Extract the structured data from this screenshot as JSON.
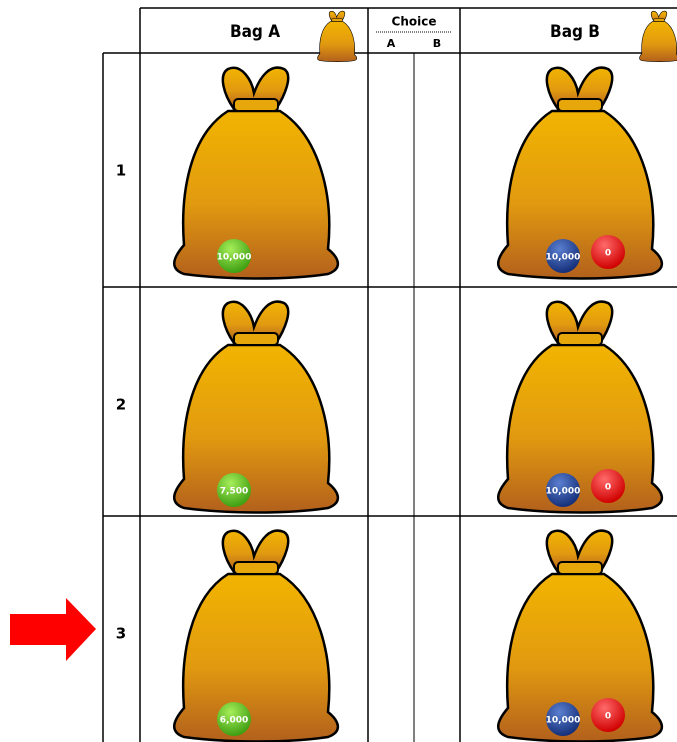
{
  "header": {
    "bag_a": "Bag A",
    "choice": "Choice",
    "choice_a": "A",
    "choice_b": "B",
    "bag_b": "Bag B"
  },
  "rows": [
    {
      "label": "1",
      "bag_a_balls": [
        "10,000"
      ],
      "bag_b_balls": [
        "10,000",
        "0"
      ]
    },
    {
      "label": "2",
      "bag_a_balls": [
        "7,500"
      ],
      "bag_b_balls": [
        "10,000",
        "0"
      ]
    },
    {
      "label": "3",
      "bag_a_balls": [
        "6,000"
      ],
      "bag_b_balls": [
        "10,000",
        "0"
      ]
    }
  ]
}
